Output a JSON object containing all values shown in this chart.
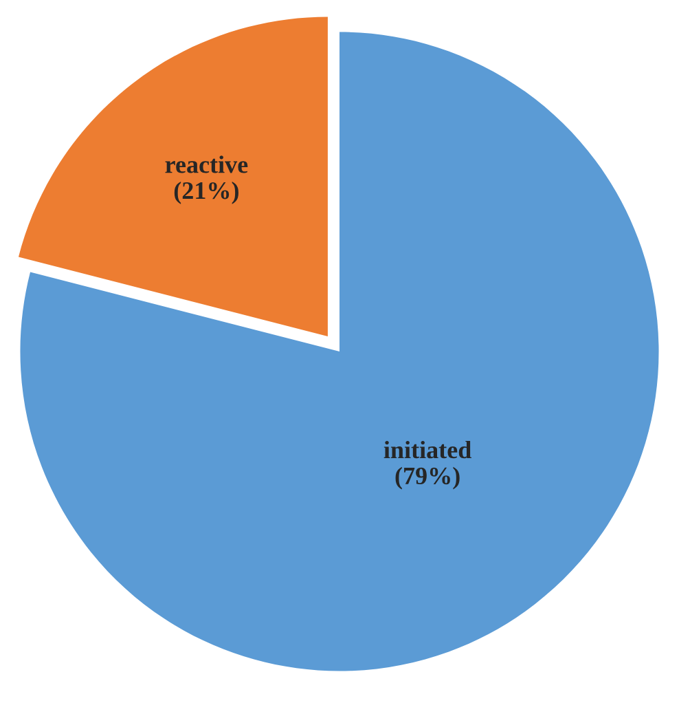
{
  "chart_data": {
    "type": "pie",
    "categories": [
      "reactive",
      "initiated"
    ],
    "values": [
      21,
      79
    ],
    "value_labels": [
      "(21%)",
      "(79%)"
    ],
    "colors": [
      "#ed7d31",
      "#5b9bd5"
    ]
  }
}
